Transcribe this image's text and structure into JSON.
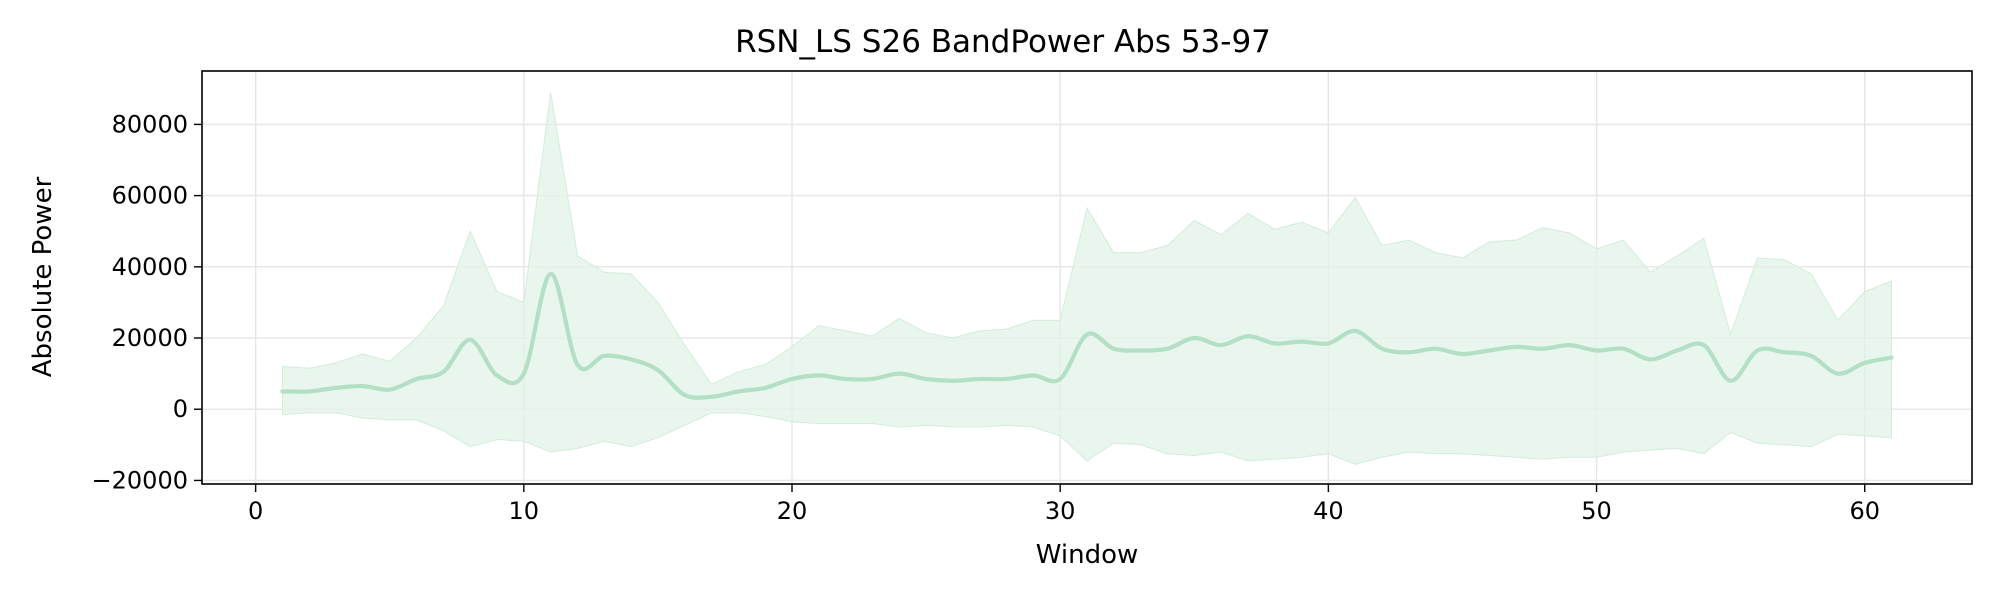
{
  "chart_data": {
    "type": "line",
    "title": "RSN_LS S26 BandPower Abs 53-97",
    "xlabel": "Window",
    "ylabel": "Absolute Power",
    "xlim": [
      -2,
      64
    ],
    "ylim": [
      -21000,
      95000
    ],
    "xticks": [
      0,
      10,
      20,
      30,
      40,
      50,
      60
    ],
    "yticks": [
      -20000,
      0,
      20000,
      40000,
      60000,
      80000
    ],
    "ytick_labels": [
      "−20000",
      "0",
      "20000",
      "40000",
      "60000",
      "80000"
    ],
    "grid": true,
    "legend": "none",
    "colors": {
      "line": "#b2dfc5",
      "band": "#e2f3e8",
      "grid": "#e6e6e6"
    },
    "x": [
      1,
      2,
      3,
      4,
      5,
      6,
      7,
      8,
      9,
      10,
      11,
      12,
      13,
      14,
      15,
      16,
      17,
      18,
      19,
      20,
      21,
      22,
      23,
      24,
      25,
      26,
      27,
      28,
      29,
      30,
      31,
      32,
      33,
      34,
      35,
      36,
      37,
      38,
      39,
      40,
      41,
      42,
      43,
      44,
      45,
      46,
      47,
      48,
      49,
      50,
      51,
      52,
      53,
      54,
      55,
      56,
      57,
      58,
      59,
      60,
      61
    ],
    "series": [
      {
        "values": [
          5000,
          5000,
          6000,
          6500,
          5500,
          8500,
          10500,
          19500,
          9500,
          10000,
          38000,
          12500,
          15000,
          14000,
          11000,
          4000,
          3500,
          5000,
          6000,
          8500,
          9500,
          8500,
          8500,
          10000,
          8500,
          8000,
          8500,
          8500,
          9500,
          8500,
          21000,
          17000,
          16500,
          17000,
          20000,
          18000,
          20500,
          18500,
          19000,
          18500,
          22000,
          17000,
          16000,
          17000,
          15500,
          16500,
          17500,
          17000,
          18000,
          16500,
          17000,
          14000,
          16500,
          18000,
          8000,
          16500,
          16000,
          15000,
          10000,
          13000,
          14500
        ],
        "upper": [
          12000,
          11500,
          13000,
          15500,
          13500,
          20000,
          29000,
          50000,
          33000,
          30000,
          89000,
          43000,
          38500,
          38000,
          30000,
          18000,
          7000,
          10500,
          12500,
          17500,
          23500,
          22000,
          20500,
          25500,
          21500,
          20000,
          22000,
          22500,
          25000,
          25000,
          56500,
          44000,
          44000,
          46000,
          53000,
          49000,
          55000,
          50500,
          52500,
          49500,
          59500,
          46000,
          47500,
          44000,
          42500,
          47000,
          47500,
          51000,
          49500,
          45000,
          47500,
          38500,
          43000,
          48000,
          21000,
          42500,
          42000,
          38000,
          25000,
          33000,
          36000
        ],
        "lower": [
          -1500,
          -1000,
          -1000,
          -2500,
          -3000,
          -3000,
          -6000,
          -10500,
          -8500,
          -9000,
          -12000,
          -11000,
          -9000,
          -10500,
          -8000,
          -4500,
          -1000,
          -1000,
          -2000,
          -3500,
          -4000,
          -4000,
          -4000,
          -5000,
          -4500,
          -5000,
          -5000,
          -4500,
          -5000,
          -7500,
          -14500,
          -9500,
          -10000,
          -12500,
          -13000,
          -12000,
          -14500,
          -14000,
          -13500,
          -12500,
          -15500,
          -13500,
          -12000,
          -12500,
          -12500,
          -13000,
          -13500,
          -14000,
          -13500,
          -13500,
          -12000,
          -11500,
          -11000,
          -12500,
          -6500,
          -9500,
          -10000,
          -10500,
          -7000,
          -7500,
          -8000
        ]
      }
    ]
  }
}
